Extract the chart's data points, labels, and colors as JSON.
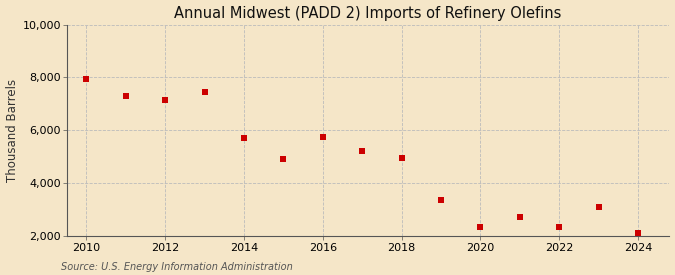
{
  "title": "Annual Midwest (PADD 2) Imports of Refinery Olefins",
  "ylabel": "Thousand Barrels",
  "source": "Source: U.S. Energy Information Administration",
  "years": [
    2010,
    2011,
    2012,
    2013,
    2014,
    2015,
    2016,
    2017,
    2018,
    2019,
    2020,
    2021,
    2022,
    2023,
    2024
  ],
  "values": [
    7950,
    7300,
    7150,
    7450,
    5700,
    4900,
    5750,
    5200,
    4950,
    3350,
    2350,
    2700,
    2350,
    3100,
    2100
  ],
  "marker_color": "#cc0000",
  "marker": "s",
  "marker_size": 4,
  "background_color": "#f5e6c8",
  "grid_color": "#bbbbbb",
  "ylim": [
    2000,
    10000
  ],
  "yticks": [
    2000,
    4000,
    6000,
    8000,
    10000
  ],
  "xlim": [
    2009.5,
    2024.8
  ],
  "xticks": [
    2010,
    2012,
    2014,
    2016,
    2018,
    2020,
    2022,
    2024
  ],
  "title_fontsize": 10.5,
  "label_fontsize": 8.5,
  "tick_fontsize": 8,
  "source_fontsize": 7
}
